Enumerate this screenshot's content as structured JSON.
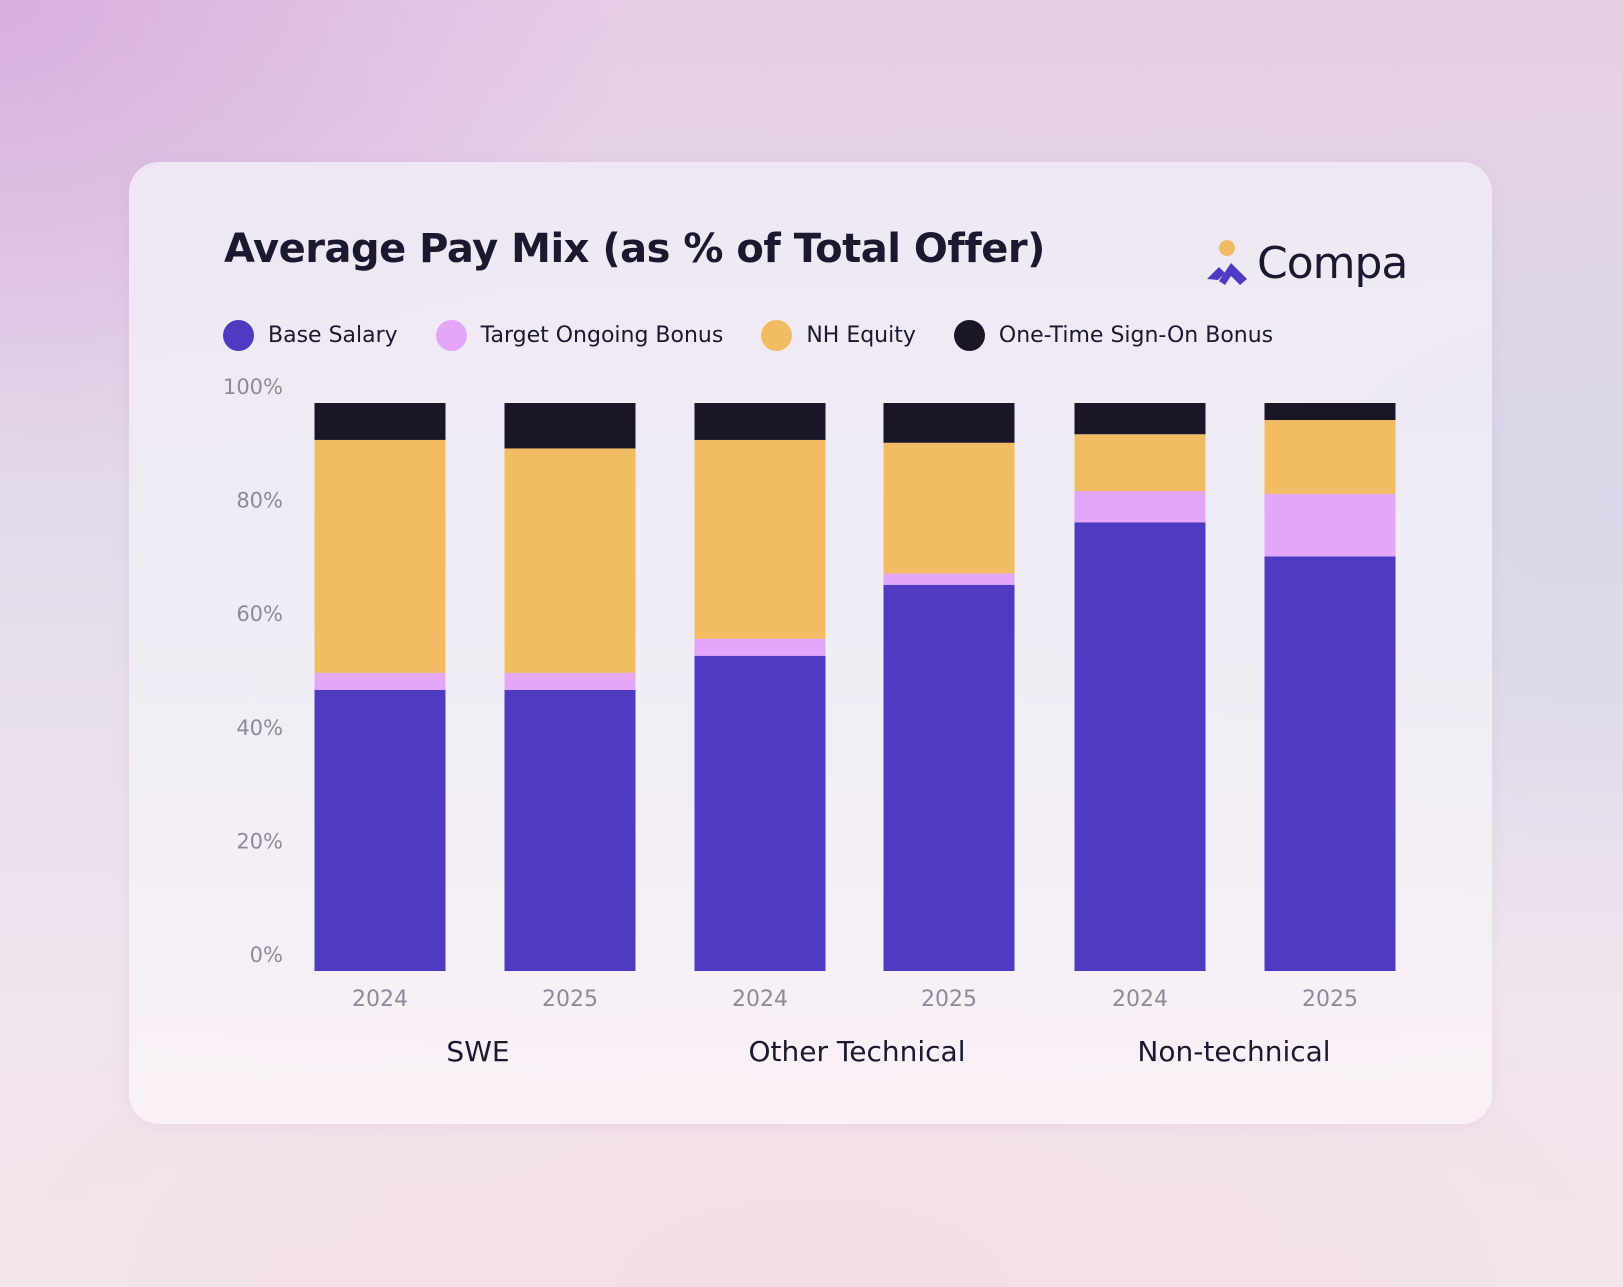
{
  "colors": {
    "base_salary": "#4f3bc1",
    "target_ongoing_bonus": "#e4a6f9",
    "nh_equity": "#f2bd62",
    "sign_on_bonus": "#1a1628",
    "brand_accent": "#f2bd62",
    "brand_primary": "#4f3bc1"
  },
  "brand": {
    "name": "Compa",
    "icon": "compa-logo-icon"
  },
  "chart_data": {
    "type": "bar",
    "stacked": true,
    "title": "Average Pay Mix (as % of Total Offer)",
    "xlabel": "",
    "ylabel": "",
    "ylim": [
      0,
      100
    ],
    "yticks": [
      "0%",
      "20%",
      "40%",
      "60%",
      "80%",
      "100%"
    ],
    "ytick_values": [
      0,
      20,
      40,
      60,
      80,
      100
    ],
    "grid": false,
    "legend_position": "top-left",
    "groups": [
      "SWE",
      "Other Technical",
      "Non-technical"
    ],
    "categories": [
      "2024",
      "2025",
      "2024",
      "2025",
      "2024",
      "2025"
    ],
    "category_group": [
      0,
      0,
      1,
      1,
      2,
      2
    ],
    "series": [
      {
        "name": "Base Salary",
        "color_key": "base_salary",
        "values": [
          49.5,
          49.5,
          55.5,
          68,
          79,
          73
        ]
      },
      {
        "name": "Target Ongoing Bonus",
        "color_key": "target_ongoing_bonus",
        "values": [
          3,
          3,
          3,
          2,
          5.5,
          11
        ]
      },
      {
        "name": "NH Equity",
        "color_key": "nh_equity",
        "values": [
          41,
          39.5,
          35,
          23,
          10,
          13
        ]
      },
      {
        "name": "One-Time Sign-On Bonus",
        "color_key": "sign_on_bonus",
        "values": [
          6.5,
          8,
          6.5,
          7,
          5.5,
          3
        ]
      }
    ]
  }
}
